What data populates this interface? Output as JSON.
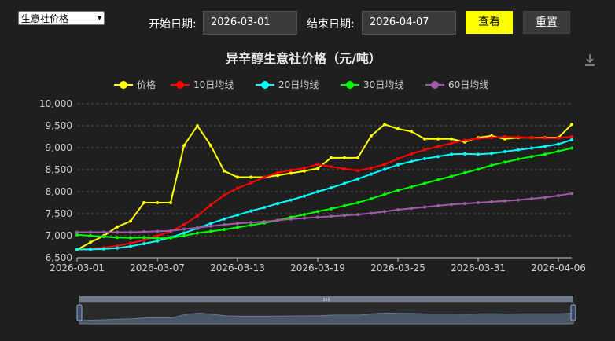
{
  "controls": {
    "select_value": "生意社价格",
    "start_label": "开始日期:",
    "start_value": "2026-03-01",
    "end_label": "结束日期:",
    "end_value": "2026-04-07",
    "query_label": "查看",
    "reset_label": "重置"
  },
  "colors": {
    "background": "#1f1f1f",
    "price": "#ffff00",
    "ma10": "#ff0000",
    "ma20": "#00ffff",
    "ma30": "#00ff00",
    "ma60": "#a05aa6",
    "query_button": "#ffff00"
  },
  "chart_data": {
    "type": "line",
    "title": "异辛醇生意社价格（元/吨）",
    "legend_placement": "top",
    "grid": true,
    "ylim": [
      6500,
      10000
    ],
    "yticks": [
      "6,500",
      "7,000",
      "7,500",
      "8,000",
      "8,500",
      "9,000",
      "9,500",
      "10,000"
    ],
    "xticks": [
      "2026-03-01",
      "2026-03-07",
      "2026-03-13",
      "2026-03-19",
      "2026-03-25",
      "2026-03-31",
      "2026-04-06"
    ],
    "x": [
      "2026-03-01",
      "2026-03-02",
      "2026-03-03",
      "2026-03-04",
      "2026-03-05",
      "2026-03-06",
      "2026-03-07",
      "2026-03-08",
      "2026-03-09",
      "2026-03-10",
      "2026-03-11",
      "2026-03-12",
      "2026-03-13",
      "2026-03-14",
      "2026-03-15",
      "2026-03-16",
      "2026-03-17",
      "2026-03-18",
      "2026-03-19",
      "2026-03-20",
      "2026-03-21",
      "2026-03-22",
      "2026-03-23",
      "2026-03-24",
      "2026-03-25",
      "2026-03-26",
      "2026-03-27",
      "2026-03-28",
      "2026-03-29",
      "2026-03-30",
      "2026-03-31",
      "2026-04-01",
      "2026-04-02",
      "2026-04-03",
      "2026-04-04",
      "2026-04-05",
      "2026-04-06",
      "2026-04-07"
    ],
    "series": [
      {
        "name": "价格",
        "key": "price",
        "values": [
          6680,
          6850,
          7000,
          7200,
          7330,
          7750,
          7750,
          7750,
          9050,
          9500,
          9050,
          8470,
          8330,
          8330,
          8330,
          8370,
          8420,
          8470,
          8530,
          8770,
          8770,
          8770,
          9270,
          9530,
          9430,
          9370,
          9200,
          9200,
          9200,
          9130,
          9230,
          9270,
          9200,
          9230,
          9230,
          9230,
          9230,
          9530
        ]
      },
      {
        "name": "10日均线",
        "key": "ma10",
        "values": [
          6680,
          6700,
          6730,
          6770,
          6830,
          6900,
          7000,
          7100,
          7250,
          7450,
          7700,
          7920,
          8080,
          8200,
          8330,
          8430,
          8490,
          8540,
          8620,
          8570,
          8520,
          8480,
          8540,
          8620,
          8750,
          8860,
          8950,
          9030,
          9100,
          9170,
          9210,
          9230,
          9250,
          9240,
          9230,
          9220,
          9220,
          9250
        ]
      },
      {
        "name": "20日均线",
        "key": "ma20",
        "values": [
          6690,
          6690,
          6700,
          6720,
          6760,
          6820,
          6880,
          6960,
          7060,
          7170,
          7280,
          7380,
          7470,
          7560,
          7640,
          7730,
          7810,
          7900,
          8000,
          8090,
          8190,
          8290,
          8400,
          8510,
          8610,
          8690,
          8750,
          8800,
          8850,
          8860,
          8850,
          8870,
          8910,
          8950,
          8990,
          9030,
          9080,
          9180
        ]
      },
      {
        "name": "30日均线",
        "key": "ma30",
        "values": [
          7020,
          7000,
          6980,
          6960,
          6950,
          6960,
          6940,
          6950,
          7000,
          7060,
          7100,
          7140,
          7190,
          7240,
          7290,
          7350,
          7420,
          7480,
          7550,
          7610,
          7680,
          7750,
          7840,
          7940,
          8030,
          8110,
          8190,
          8270,
          8350,
          8430,
          8510,
          8600,
          8670,
          8740,
          8800,
          8850,
          8920,
          8990
        ]
      },
      {
        "name": "60日均线",
        "key": "ma60",
        "values": [
          7080,
          7080,
          7080,
          7080,
          7080,
          7090,
          7100,
          7110,
          7150,
          7180,
          7220,
          7250,
          7280,
          7300,
          7320,
          7350,
          7380,
          7400,
          7420,
          7440,
          7460,
          7480,
          7510,
          7550,
          7590,
          7620,
          7650,
          7680,
          7710,
          7730,
          7750,
          7770,
          7790,
          7810,
          7840,
          7870,
          7910,
          7960
        ]
      }
    ]
  }
}
